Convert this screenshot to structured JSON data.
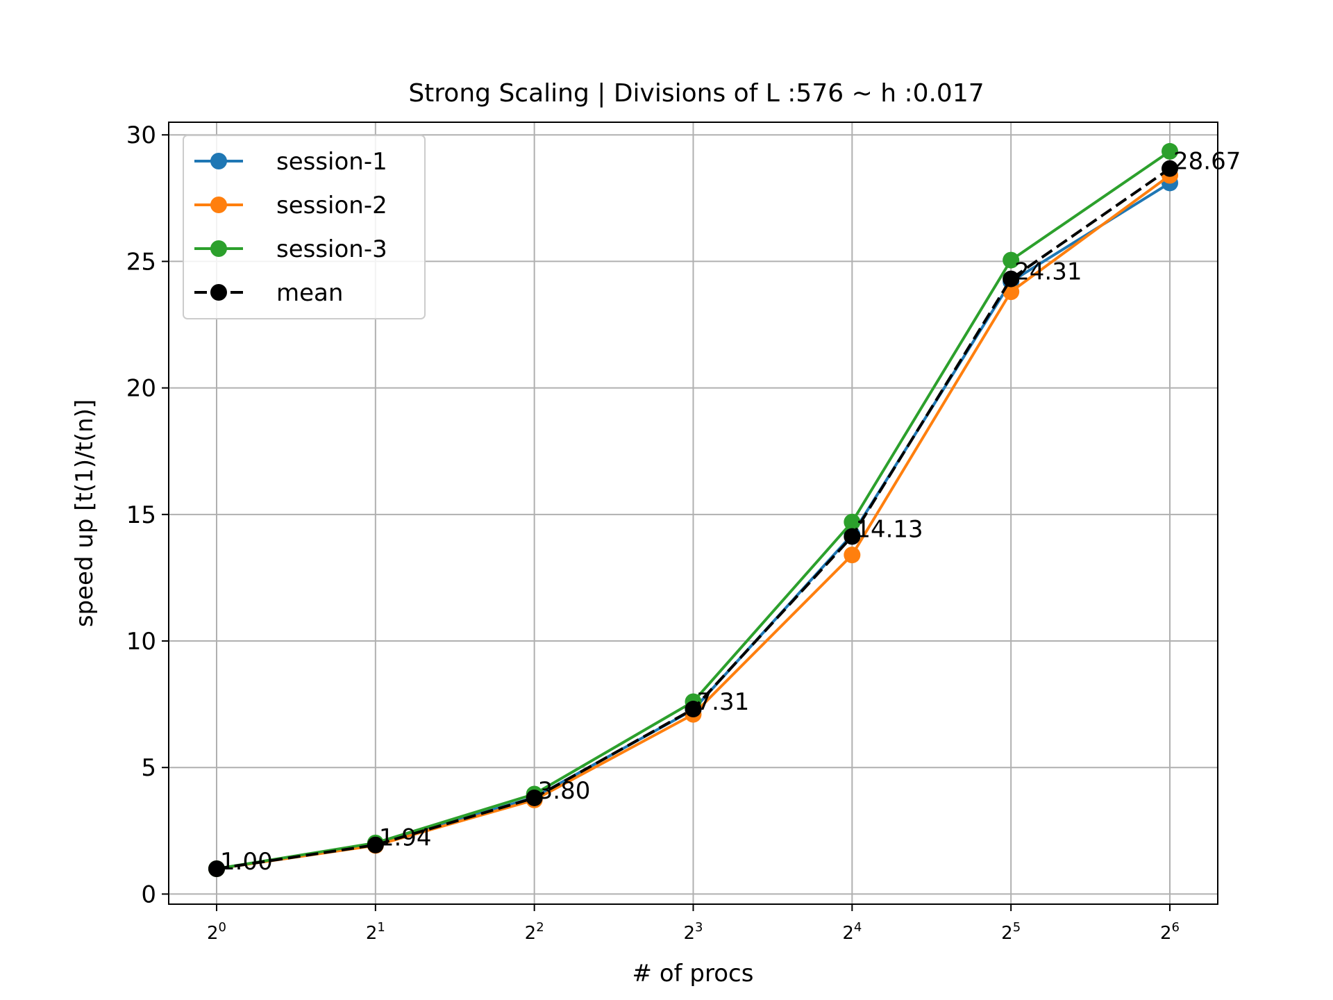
{
  "chart_data": {
    "type": "line",
    "title": "Strong Scaling | Divisions of L :576 ~ h :0.017",
    "xlabel": "# of procs",
    "ylabel": "speed up [t(1)/t(n)]",
    "x_scale": "log2",
    "x": [
      1,
      2,
      4,
      8,
      16,
      32,
      64
    ],
    "x_tick_labels": [
      {
        "base": "2",
        "exp": "0"
      },
      {
        "base": "2",
        "exp": "1"
      },
      {
        "base": "2",
        "exp": "2"
      },
      {
        "base": "2",
        "exp": "3"
      },
      {
        "base": "2",
        "exp": "4"
      },
      {
        "base": "2",
        "exp": "5"
      },
      {
        "base": "2",
        "exp": "6"
      }
    ],
    "y_ticks": [
      0,
      5,
      10,
      15,
      20,
      25,
      30
    ],
    "y_tick_labels": [
      "0",
      "5",
      "10",
      "15",
      "20",
      "25",
      "30"
    ],
    "ylim": [
      -0.4,
      30.5
    ],
    "grid": true,
    "legend_position": "upper-left",
    "series": [
      {
        "name": "session-1",
        "color": "#1f77b4",
        "style": "solid",
        "values": [
          1.0,
          1.96,
          3.82,
          7.28,
          14.2,
          24.2,
          28.1
        ]
      },
      {
        "name": "session-2",
        "color": "#ff7f0e",
        "style": "solid",
        "values": [
          1.0,
          1.92,
          3.72,
          7.1,
          13.4,
          23.8,
          28.4
        ]
      },
      {
        "name": "session-3",
        "color": "#2ca02c",
        "style": "solid",
        "values": [
          1.0,
          2.02,
          3.95,
          7.6,
          14.7,
          25.05,
          29.35
        ]
      },
      {
        "name": "mean",
        "color": "#000000",
        "style": "dashed",
        "values": [
          1.0,
          1.94,
          3.8,
          7.31,
          14.13,
          24.31,
          28.67
        ]
      }
    ],
    "annotations": [
      "1.00",
      "1.94",
      "3.80",
      "7.31",
      "14.13",
      "24.31",
      "28.67"
    ]
  }
}
